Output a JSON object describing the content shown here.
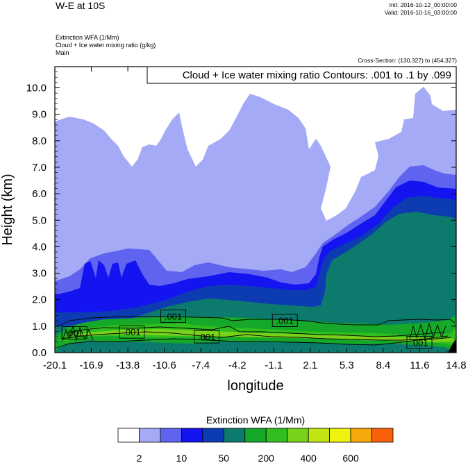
{
  "header": {
    "title": "W-E at 10S",
    "init": "Init: 2016-10-12_00:00:00",
    "valid": "Valid: 2016-10-16_03:00:00",
    "subtitle_lines": [
      "Extinction WFA   (1/Mm)",
      "Cloud + Ice water mixing ratio   (g/kg)",
      "Main"
    ],
    "cross_section": "Cross-Section: (130,327) to (454,327)"
  },
  "colors": {
    "levels": [
      "#ffffff",
      "#a4aaf5",
      "#5f63f0",
      "#1414f0",
      "#0d3cb2",
      "#0d7a6e",
      "#16a828",
      "#30bf1e",
      "#7ad11a",
      "#c2e512",
      "#f2f20f",
      "#f7a80b",
      "#f75f0b",
      "#f7140f"
    ]
  },
  "chart_data": {
    "type": "heatmap",
    "xlabel": "longitude",
    "ylabel": "Height (km)",
    "x_tick_labels": [
      "-20.1",
      "-16.9",
      "-13.8",
      "-10.6",
      "-7.4",
      "-4.2",
      "-1.1",
      "2.1",
      "5.3",
      "8.4",
      "11.6",
      "14.8"
    ],
    "y_tick_labels": [
      "0.0",
      "1.0",
      "2.0",
      "3.0",
      "4.0",
      "5.0",
      "6.0",
      "7.0",
      "8.0",
      "9.0",
      "10.0"
    ],
    "xlim": [
      -20.1,
      14.8
    ],
    "ylim": [
      0,
      10.8
    ],
    "contour_info": "Cloud + Ice water mixing ratio Contours: .001 to .1 by .099",
    "contour_labels": [
      {
        "text": ".001",
        "x": -18.4,
        "y": 0.75
      },
      {
        "text": ".001",
        "x": -13.4,
        "y": 0.78
      },
      {
        "text": ".001",
        "x": -9.8,
        "y": 1.38
      },
      {
        "text": ".001",
        "x": -6.9,
        "y": 0.6
      },
      {
        "text": ".001",
        "x": -0.1,
        "y": 1.22
      },
      {
        "text": ".001",
        "x": 11.6,
        "y": 0.38
      }
    ],
    "colorbar": {
      "title": "Extinction WFA  (1/Mm)",
      "tick_labels": [
        "2",
        "10",
        "50",
        "200",
        "400",
        "600"
      ]
    }
  }
}
